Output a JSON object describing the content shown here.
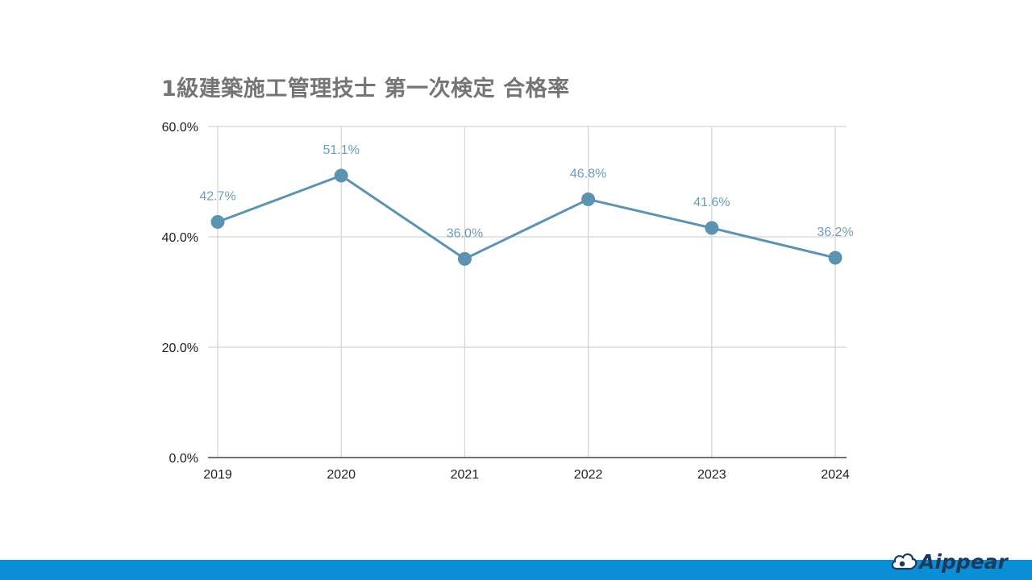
{
  "slide": {
    "brand_name": "Aippear"
  },
  "colors": {
    "series": "#5b93b1",
    "label": "#6a9ebc",
    "grid": "#d3d3d3",
    "axis": "#424242",
    "tick_text": "#212121",
    "bottom_bar": "#0a8fd6",
    "brand": "#1b3a5c"
  },
  "chart_data": {
    "type": "line",
    "title": "1級建築施工管理技士 第一次検定 合格率",
    "xlabel": "",
    "ylabel": "",
    "categories": [
      "2019",
      "2020",
      "2021",
      "2022",
      "2023",
      "2024"
    ],
    "series": [
      {
        "values": [
          42.7,
          51.1,
          36.0,
          46.8,
          41.6,
          36.2
        ]
      }
    ],
    "data_labels": [
      "42.7%",
      "51.1%",
      "36.0%",
      "46.8%",
      "41.6%",
      "36.2%"
    ],
    "ylim": [
      0,
      60
    ],
    "yticks": [
      0,
      20,
      40,
      60
    ],
    "ytick_labels": [
      "0.0%",
      "20.0%",
      "40.0%",
      "60.0%"
    ],
    "grid": true,
    "legend": "none"
  }
}
